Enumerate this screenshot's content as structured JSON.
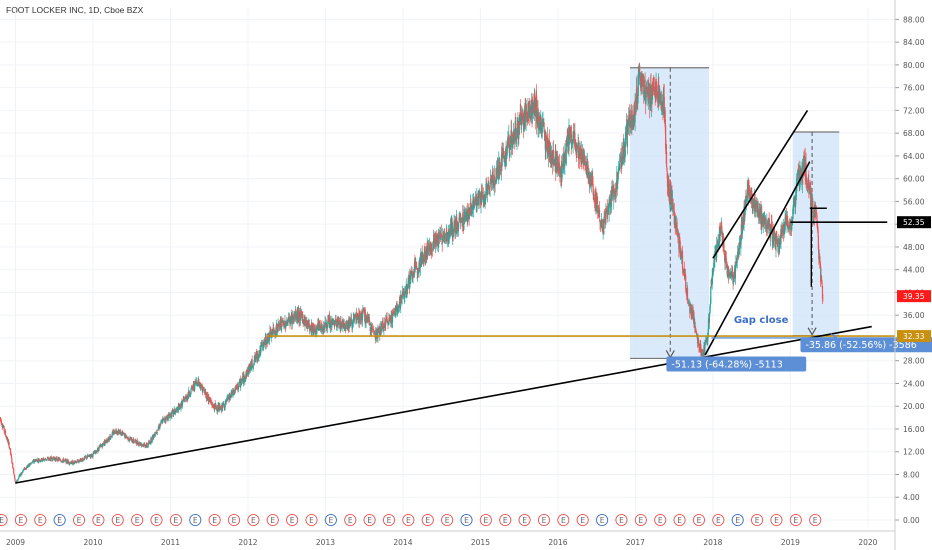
{
  "header": {
    "title": "FOOT LOCKER INC, 1D, Cboe BZX"
  },
  "colors": {
    "up": "#26a69a",
    "down": "#ef5350",
    "grid": "#f0f3f6",
    "axis_text": "#555555",
    "trendline": "#000000",
    "support": "#c8900e",
    "zone_fill": "#cfe3f8",
    "label_box": "#5c8fd6",
    "red_tag": "#ff1a1a",
    "black_tag": "#000000"
  },
  "chart_data": {
    "type": "candlestick",
    "title": "FOOT LOCKER INC, 1D, Cboe BZX",
    "ylim": [
      0,
      90
    ],
    "y_ticks": [
      "0.00",
      "4.00",
      "8.00",
      "12.00",
      "16.00",
      "20.00",
      "24.00",
      "28.00",
      "32.00",
      "36.00",
      "40.00",
      "44.00",
      "48.00",
      "52.00",
      "56.00",
      "60.00",
      "64.00",
      "68.00",
      "72.00",
      "76.00",
      "80.00",
      "84.00",
      "88.00"
    ],
    "x_ticks": [
      "2009",
      "2010",
      "2011",
      "2012",
      "2013",
      "2014",
      "2015",
      "2016",
      "2017",
      "2018",
      "2019",
      "2020"
    ],
    "x_tick_years": [
      2009,
      2010,
      2011,
      2012,
      2013,
      2014,
      2015,
      2016,
      2017,
      2018,
      2019,
      2020
    ],
    "xlim": [
      2008.8,
      2020.35
    ],
    "grid": true,
    "price_path": [
      [
        2008.8,
        18.0
      ],
      [
        2008.92,
        13.0
      ],
      [
        2009.0,
        6.5
      ],
      [
        2009.1,
        8.8
      ],
      [
        2009.25,
        10.5
      ],
      [
        2009.5,
        10.8
      ],
      [
        2009.75,
        10.0
      ],
      [
        2010.0,
        11.5
      ],
      [
        2010.3,
        15.8
      ],
      [
        2010.5,
        14.0
      ],
      [
        2010.7,
        13.0
      ],
      [
        2010.9,
        17.5
      ],
      [
        2011.1,
        19.5
      ],
      [
        2011.35,
        24.5
      ],
      [
        2011.55,
        20.0
      ],
      [
        2011.65,
        19.5
      ],
      [
        2011.9,
        24.0
      ],
      [
        2012.1,
        28.5
      ],
      [
        2012.25,
        32.0
      ],
      [
        2012.4,
        34.0
      ],
      [
        2012.65,
        36.0
      ],
      [
        2012.85,
        33.5
      ],
      [
        2013.05,
        34.5
      ],
      [
        2013.3,
        34.5
      ],
      [
        2013.5,
        36.0
      ],
      [
        2013.65,
        32.5
      ],
      [
        2013.9,
        36.5
      ],
      [
        2014.15,
        44.0
      ],
      [
        2014.4,
        49.0
      ],
      [
        2014.65,
        51.0
      ],
      [
        2014.9,
        55.0
      ],
      [
        2015.1,
        58.0
      ],
      [
        2015.3,
        64.0
      ],
      [
        2015.55,
        71.0
      ],
      [
        2015.7,
        73.0
      ],
      [
        2015.85,
        66.0
      ],
      [
        2016.05,
        61.0
      ],
      [
        2016.15,
        68.0
      ],
      [
        2016.35,
        63.0
      ],
      [
        2016.5,
        56.0
      ],
      [
        2016.58,
        51.0
      ],
      [
        2016.7,
        57.0
      ],
      [
        2016.8,
        62.0
      ],
      [
        2016.92,
        70.0
      ],
      [
        2017.0,
        72.0
      ],
      [
        2017.05,
        78.5
      ],
      [
        2017.15,
        74.0
      ],
      [
        2017.3,
        75.5
      ],
      [
        2017.38,
        73.0
      ],
      [
        2017.4,
        61.0
      ],
      [
        2017.48,
        55.0
      ],
      [
        2017.6,
        46.0
      ],
      [
        2017.7,
        37.0
      ],
      [
        2017.75,
        36.0
      ],
      [
        2017.8,
        32.0
      ],
      [
        2017.87,
        29.0
      ],
      [
        2017.93,
        32.0
      ],
      [
        2018.0,
        45.0
      ],
      [
        2018.1,
        51.0
      ],
      [
        2018.18,
        44.0
      ],
      [
        2018.27,
        42.0
      ],
      [
        2018.36,
        50.0
      ],
      [
        2018.45,
        58.0
      ],
      [
        2018.55,
        55.0
      ],
      [
        2018.7,
        52.0
      ],
      [
        2018.85,
        48.0
      ],
      [
        2018.95,
        53.0
      ],
      [
        2019.0,
        51.0
      ],
      [
        2019.1,
        60.0
      ],
      [
        2019.18,
        62.5
      ],
      [
        2019.22,
        60.0
      ],
      [
        2019.28,
        55.0
      ],
      [
        2019.34,
        53.0
      ],
      [
        2019.38,
        44.0
      ],
      [
        2019.42,
        39.35
      ]
    ],
    "volatility": 0.06,
    "support_level": 32.33,
    "trendline_lower": [
      [
        2009.0,
        6.5
      ],
      [
        2020.05,
        34.0
      ]
    ],
    "trendline_upper": [
      [
        2018.0,
        46.0
      ],
      [
        2019.22,
        72.0
      ]
    ],
    "trendline_channel_low": [
      [
        2017.9,
        29.0
      ],
      [
        2019.25,
        63.0
      ]
    ],
    "resistance_segment": [
      [
        2019.0,
        52.35
      ],
      [
        2020.25,
        52.35
      ]
    ],
    "zones": [
      {
        "x0": 2016.93,
        "x1": 2017.95,
        "top": 79.5,
        "bottom": 28.4,
        "arrow_x": 2017.45,
        "label": "-51.13 (-64.28%) -5113",
        "label_x": 2017.4,
        "label_y": 26.8
      },
      {
        "x0": 2019.03,
        "x1": 2019.63,
        "top": 68.2,
        "bottom": 32.4,
        "arrow_x": 2019.28,
        "label": "-35.86 (-52.56%) -3586",
        "label_x": 2019.13,
        "label_y": 30.2
      }
    ],
    "annotations": [
      {
        "text": "Gap close",
        "x": 2018.27,
        "y": 34.6
      }
    ],
    "price_tags": [
      {
        "label": "52.35",
        "value": 52.35,
        "bg": "#000000"
      },
      {
        "label": "39.35",
        "value": 39.35,
        "bg": "#ff1a1a"
      },
      {
        "label": "32.33",
        "value": 32.33,
        "bg": "#c8900e"
      }
    ],
    "earnings_marker": "E"
  }
}
